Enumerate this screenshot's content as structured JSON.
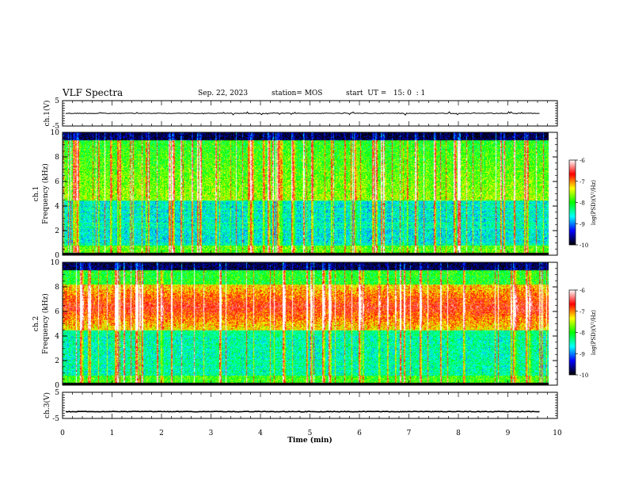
{
  "header": {
    "title": "VLF Spectra",
    "date": "Sep. 22, 2023",
    "station": "station= MOS",
    "start": "start  UT =   15: 0  : 1"
  },
  "chart_data": [
    {
      "type": "line",
      "name": "ch1-waveform",
      "ylabel": "ch.1(V)",
      "ylim": [
        -5,
        5
      ],
      "yticks": [
        "5",
        "-5"
      ],
      "xlim": [
        0,
        10
      ],
      "baseline": 0
    },
    {
      "type": "heatmap",
      "name": "ch1-spectrogram",
      "ylabel": "ch.1\nFrequency (kHz)",
      "ylim": [
        0,
        10
      ],
      "yticks": [
        "10",
        "8",
        "6",
        "4",
        "2",
        "0"
      ],
      "xlim": [
        0,
        10
      ],
      "colorbar": {
        "label": "log(PSD)(V²/Hz)",
        "range": [
          -10,
          -6
        ],
        "ticks": [
          "-6",
          "-7",
          "-8",
          "-9",
          "-10"
        ]
      }
    },
    {
      "type": "heatmap",
      "name": "ch2-spectrogram",
      "ylabel": "ch.2\nFrequency (kHz)",
      "ylim": [
        0,
        10
      ],
      "yticks": [
        "10",
        "8",
        "6",
        "4",
        "2",
        "0"
      ],
      "xlim": [
        0,
        10
      ],
      "colorbar": {
        "label": "log(PSD)(V²/Hz)",
        "range": [
          -10,
          -6
        ],
        "ticks": [
          "-6",
          "-7",
          "-8",
          "-9",
          "-10"
        ]
      }
    },
    {
      "type": "line",
      "name": "ch3-waveform",
      "ylabel": "ch.3(V)",
      "ylim": [
        -5,
        5
      ],
      "yticks": [
        "5",
        "-5"
      ],
      "xlim": [
        0,
        10
      ],
      "baseline": -2.4
    }
  ],
  "xaxis": {
    "label": "Time  (min)",
    "ticks": [
      "0",
      "1",
      "2",
      "3",
      "4",
      "5",
      "6",
      "7",
      "8",
      "9",
      "10"
    ],
    "data_end": 9.82
  },
  "colors": {
    "scale": [
      "#000000",
      "#0000ff",
      "#00ffff",
      "#00ff00",
      "#ffff00",
      "#ff0000",
      "#ffffff"
    ]
  }
}
